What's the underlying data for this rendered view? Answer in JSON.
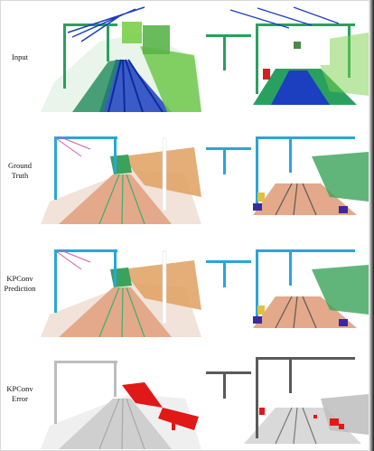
{
  "rows": [
    {
      "label_lines": [
        "Input"
      ]
    },
    {
      "label_lines": [
        "Ground",
        "Truth"
      ]
    },
    {
      "label_lines": [
        "KPConv",
        "Prediction"
      ]
    },
    {
      "label_lines": [
        "KPConv",
        "Error"
      ]
    }
  ],
  "colors": {
    "input_rail": "#1c3fbf",
    "input_ground": "#2aa060",
    "input_veg": "#7ad04a",
    "pole": "#2aa6d6",
    "ground": "#e3a98a",
    "vegetation": "#3aa25a",
    "embankment": "#e0a060",
    "wire_pink": "#d05bb4",
    "error_red": "#e01818",
    "error_gray": "#bdbdbd"
  }
}
